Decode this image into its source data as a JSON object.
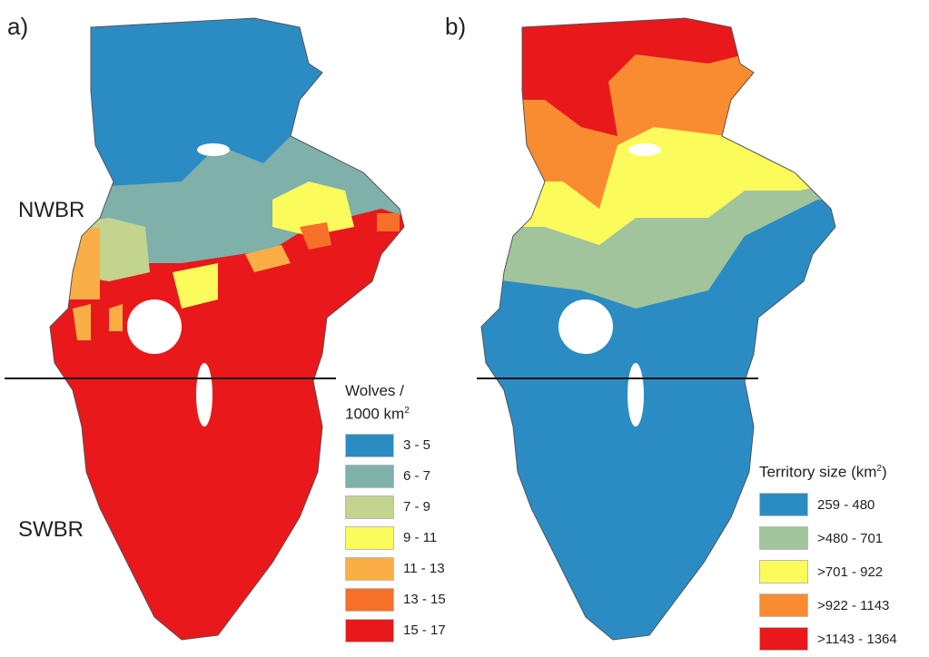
{
  "panel_a": {
    "label": "a)",
    "regions": [
      "NWBR",
      "SWBR"
    ],
    "legend": {
      "title_line1": "Wolves /",
      "title_line2": "1000 km",
      "title_sup": "2",
      "items": [
        {
          "label": "3 - 5",
          "color": "#2b8cc4"
        },
        {
          "label": "6 - 7",
          "color": "#7fb0aa"
        },
        {
          "label": "7 - 9",
          "color": "#c2d48e"
        },
        {
          "label": "9 - 11",
          "color": "#fbfb5c"
        },
        {
          "label": "11 - 13",
          "color": "#fbae45"
        },
        {
          "label": "13 - 15",
          "color": "#f7702a"
        },
        {
          "label": "15 - 17",
          "color": "#e8181b"
        }
      ]
    }
  },
  "panel_b": {
    "label": "b)",
    "legend": {
      "title": "Territory size (km",
      "title_sup": "2",
      "title_end": ")",
      "items": [
        {
          "label": "259 - 480",
          "color": "#2b8cc4"
        },
        {
          "label": ">480 - 701",
          "color": "#a2c49c"
        },
        {
          "label": ">701 - 922",
          "color": "#fbfb5c"
        },
        {
          "label": ">922 - 1143",
          "color": "#f98c30"
        },
        {
          "label": ">1143 - 1364",
          "color": "#e8181b"
        }
      ]
    }
  }
}
